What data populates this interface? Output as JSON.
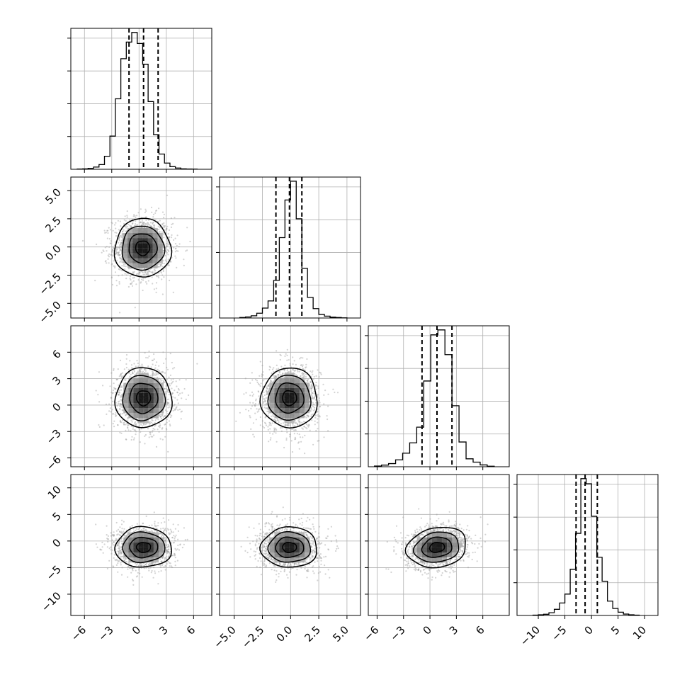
{
  "chart_data": {
    "type": "corner",
    "title": "",
    "variables": [
      {
        "index": 0,
        "xlabel": "",
        "ylabel": "",
        "xlim": [
          -7.5,
          8.0
        ],
        "ticks": [
          -6,
          -3,
          0,
          3,
          6
        ],
        "tick_labels": [
          "−6",
          "−3",
          "0",
          "3",
          "6"
        ],
        "median": 0.5,
        "q16": -1.1,
        "q84": 2.1,
        "hist": {
          "edges": [
            -6.8,
            -6.2,
            -5.6,
            -5.0,
            -4.4,
            -3.8,
            -3.2,
            -2.6,
            -2.0,
            -1.4,
            -0.8,
            -0.2,
            0.4,
            1.0,
            1.6,
            2.2,
            2.8,
            3.4,
            4.0,
            4.6,
            5.2,
            5.8,
            6.4
          ],
          "counts": [
            0.2,
            0.3,
            0.7,
            1.6,
            3.4,
            9.4,
            24,
            51,
            80,
            92,
            99,
            91,
            76,
            49,
            25,
            11,
            4.5,
            1.9,
            0.9,
            0.3,
            0.2,
            0.1
          ]
        }
      },
      {
        "index": 1,
        "xlabel": "",
        "ylabel": "",
        "xlim": [
          -6.3,
          6.2
        ],
        "ticks": [
          -5.0,
          -2.5,
          0.0,
          2.5,
          5.0
        ],
        "tick_labels": [
          "−5.0",
          "−2.5",
          "0.0",
          "2.5",
          "5.0"
        ],
        "median": -0.1,
        "q16": -1.3,
        "q84": 1.0,
        "hist": {
          "edges": [
            -4.5,
            -4.0,
            -3.5,
            -3.0,
            -2.5,
            -2.0,
            -1.5,
            -1.0,
            -0.5,
            0.0,
            0.5,
            1.0,
            1.5,
            2.0,
            2.5,
            3.0,
            3.5,
            4.0,
            4.5,
            5.0
          ],
          "counts": [
            0.3,
            0.6,
            1.3,
            2.8,
            5.8,
            10,
            22,
            47,
            69,
            80,
            58,
            29,
            12,
            5.5,
            2.1,
            1.1,
            0.5,
            0.3,
            0.1
          ]
        }
      },
      {
        "index": 2,
        "xlabel": "",
        "ylabel": "",
        "xlim": [
          -7.0,
          9.0
        ],
        "ticks": [
          -6,
          -3,
          0,
          3,
          6
        ],
        "tick_labels": [
          "−6",
          "−3",
          "0",
          "3",
          "6"
        ],
        "median": 0.8,
        "q16": -0.9,
        "q84": 2.5,
        "hist": {
          "edges": [
            -6.3,
            -5.5,
            -4.7,
            -3.9,
            -3.1,
            -2.3,
            -1.5,
            -0.7,
            0.1,
            0.9,
            1.7,
            2.5,
            3.3,
            4.1,
            4.9,
            5.7,
            6.5,
            7.3
          ],
          "counts": [
            0.4,
            1.0,
            1.9,
            4.2,
            8.2,
            14.5,
            24,
            52,
            80,
            83,
            68,
            37,
            15,
            4.8,
            2.8,
            1.1,
            0.3
          ]
        }
      },
      {
        "index": 3,
        "xlabel": "",
        "ylabel": "",
        "xlim": [
          -14.0,
          12.5
        ],
        "ticks": [
          -10,
          -5,
          0,
          5,
          10
        ],
        "tick_labels": [
          "−10",
          "−5",
          "0",
          "5",
          "10"
        ],
        "median": -1.2,
        "q16": -2.9,
        "q84": 1.1,
        "hist": {
          "edges": [
            -11.0,
            -10.0,
            -9.0,
            -8.0,
            -7.0,
            -6.0,
            -5.0,
            -4.0,
            -3.0,
            -2.0,
            -1.0,
            0.0,
            1.0,
            2.0,
            3.0,
            4.0,
            5.0,
            6.0,
            7.0,
            8.0,
            9.0
          ],
          "counts": [
            0.2,
            0.4,
            0.7,
            1.6,
            3.6,
            7.3,
            12.5,
            27,
            48,
            80,
            77,
            58,
            34,
            20,
            8.4,
            4.1,
            1.9,
            0.8,
            0.4,
            0.2
          ]
        }
      }
    ],
    "pairs": [
      {
        "x": 0,
        "y": 1,
        "center": [
          0.4,
          -0.1
        ],
        "sigma": [
          1.55,
          1.3
        ],
        "rho": 0.0,
        "tilt": 0.0
      },
      {
        "x": 0,
        "y": 2,
        "center": [
          0.5,
          0.8
        ],
        "sigma": [
          1.55,
          1.7
        ],
        "rho": 0.0,
        "tilt": 0.0
      },
      {
        "x": 1,
        "y": 2,
        "center": [
          -0.1,
          0.8
        ],
        "sigma": [
          1.25,
          1.7
        ],
        "rho": 0.0,
        "tilt": 0.0
      },
      {
        "x": 0,
        "y": 3,
        "center": [
          0.5,
          -1.2
        ],
        "sigma": [
          1.55,
          1.9
        ],
        "rho": 0.0,
        "tilt": 0.0
      },
      {
        "x": 1,
        "y": 3,
        "center": [
          -0.1,
          -1.2
        ],
        "sigma": [
          1.25,
          1.9
        ],
        "rho": 0.0,
        "tilt": 0.0
      },
      {
        "x": 2,
        "y": 3,
        "center": [
          0.8,
          -1.2
        ],
        "sigma": [
          1.7,
          1.9
        ],
        "rho": 0.15,
        "tilt": 0.0
      }
    ],
    "contour_levels_sigma": [
      0.5,
      1.0,
      1.5,
      2.0
    ],
    "quantiles": [
      0.16,
      0.5,
      0.84
    ],
    "grid": true,
    "colors": {
      "line": "#000000",
      "grid": "#b0b0b0",
      "points": "#9e9e9e",
      "density_low": "#e8e8e8",
      "density_high": "#000000"
    }
  }
}
